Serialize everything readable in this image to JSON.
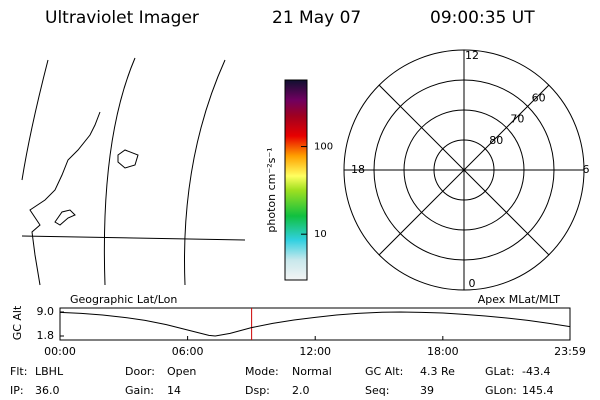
{
  "header": {
    "title": "Ultraviolet Imager",
    "date": "21 May 07",
    "time": "09:00:35 UT"
  },
  "colorbar": {
    "label": "photon cm⁻²s⁻¹",
    "scale": "log",
    "lim": [
      3,
      575
    ],
    "ticks": [
      10,
      100
    ]
  },
  "polar": {
    "rlim": [
      90,
      50
    ],
    "lat_rings": [
      80,
      70,
      60
    ],
    "mlt_ticks": [
      12,
      6,
      0,
      18
    ]
  },
  "altitude_plot": {
    "type": "line",
    "ylabel": "GC Alt",
    "left_label": "Geographic Lat/Lon",
    "right_label": "Apex MLat/MLT",
    "x": [
      0,
      1,
      2,
      3,
      4,
      5,
      6,
      7,
      7.3,
      8,
      9,
      10,
      11,
      12,
      13,
      14,
      15,
      16,
      17,
      18,
      19,
      20,
      21,
      22,
      23,
      23.98
    ],
    "values": [
      8.9,
      8.6,
      8.1,
      7.4,
      6.5,
      5.2,
      3.6,
      2.0,
      1.8,
      2.6,
      4.3,
      5.6,
      6.6,
      7.4,
      8.1,
      8.6,
      8.9,
      9.0,
      8.9,
      8.7,
      8.3,
      7.8,
      7.2,
      6.5,
      5.6,
      4.6
    ],
    "color": "#000000",
    "marker_time": 9.01,
    "marker_color": "#cc0000",
    "xlim": [
      0,
      23.98
    ],
    "ylim": [
      1.8,
      9.0
    ],
    "xticks": [
      {
        "value": 0,
        "label": "00:00"
      },
      {
        "value": 6,
        "label": "06:00"
      },
      {
        "value": 12,
        "label": "12:00"
      },
      {
        "value": 18,
        "label": "18:00"
      },
      {
        "value": 23.98,
        "label": "23:59"
      }
    ],
    "yticks": [
      {
        "value": 9.0,
        "label": "9.0"
      },
      1.8
    ]
  },
  "status": [
    [
      [
        "Flt:",
        "LBHL"
      ],
      [
        "Door:",
        "Open"
      ],
      [
        "Mode:",
        "Normal"
      ],
      [
        "GC Alt:",
        "4.3 Re"
      ],
      [
        "GLat:",
        "-43.4"
      ]
    ],
    [
      [
        "IP:",
        "36.0"
      ],
      [
        "Gain:",
        "14"
      ],
      [
        "Dsp:",
        "2.0"
      ],
      [
        "Seq:",
        "39"
      ],
      [
        "GLon:",
        "145.4"
      ]
    ]
  ]
}
